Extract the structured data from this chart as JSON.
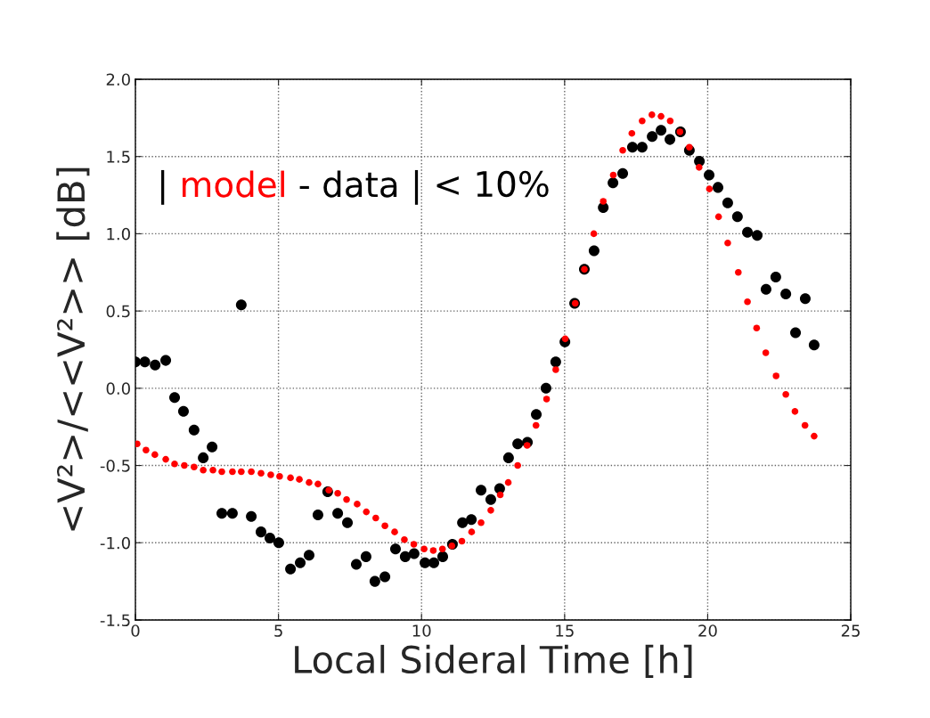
{
  "chart_data": {
    "type": "scatter",
    "xlabel": "Local Sideral Time [h]",
    "ylabel": "<V²>/<<V²>> [dB]",
    "annotations": [
      "| ",
      " - ",
      " | < 10%"
    ],
    "xlim": [
      0,
      25
    ],
    "xticks": [
      0,
      5,
      10,
      15,
      20,
      25
    ],
    "ylim": [
      -1.5,
      2.0
    ],
    "yticks": [
      -1.5,
      {
        "value": -1.0,
        "label": "-1.0"
      },
      -0.5,
      {
        "value": 0.0,
        "label": "0.0"
      },
      0.5,
      {
        "value": 1.0,
        "label": "1.0"
      },
      1.5,
      {
        "value": 2.0,
        "label": "2.0"
      }
    ],
    "grid": true,
    "marker": "circle",
    "series": [
      {
        "name": "model",
        "color": "#ff0000",
        "x": [
          0.06,
          0.37,
          0.68,
          1.06,
          1.37,
          1.71,
          2.05,
          2.37,
          2.71,
          3.02,
          3.39,
          3.7,
          4.05,
          4.39,
          4.73,
          5.04,
          5.42,
          5.73,
          6.07,
          6.38,
          6.76,
          7.07,
          7.38,
          7.75,
          8.07,
          8.4,
          8.72,
          9.06,
          9.4,
          9.73,
          10.09,
          10.41,
          10.73,
          11.06,
          11.41,
          11.75,
          12.08,
          12.42,
          12.75,
          13.03,
          13.36,
          13.69,
          14.0,
          14.37,
          14.69,
          15.02,
          15.37,
          15.69,
          16.02,
          16.35,
          16.7,
          17.03,
          17.35,
          17.71,
          18.05,
          18.37,
          18.69,
          19.03,
          19.36,
          19.7,
          20.06,
          20.38,
          20.7,
          21.07,
          21.39,
          21.71,
          22.03,
          22.39,
          22.73,
          23.05,
          23.4,
          23.72
        ],
        "values": [
          -0.36,
          -0.4,
          -0.43,
          -0.46,
          -0.49,
          -0.5,
          -0.51,
          -0.53,
          -0.53,
          -0.54,
          -0.54,
          -0.54,
          -0.54,
          -0.55,
          -0.56,
          -0.57,
          -0.58,
          -0.59,
          -0.61,
          -0.62,
          -0.66,
          -0.68,
          -0.72,
          -0.75,
          -0.8,
          -0.84,
          -0.89,
          -0.93,
          -0.98,
          -1.01,
          -1.04,
          -1.05,
          -1.04,
          -1.02,
          -0.99,
          -0.93,
          -0.87,
          -0.79,
          -0.69,
          -0.61,
          -0.5,
          -0.37,
          -0.24,
          -0.07,
          0.12,
          0.32,
          0.55,
          0.77,
          1.0,
          1.21,
          1.38,
          1.54,
          1.65,
          1.73,
          1.77,
          1.76,
          1.73,
          1.66,
          1.56,
          1.43,
          1.29,
          1.11,
          0.94,
          0.75,
          0.56,
          0.39,
          0.23,
          0.08,
          -0.04,
          -0.15,
          -0.24,
          -0.31
        ]
      },
      {
        "name": "data",
        "color": "#000000",
        "x": [
          0.0,
          0.33,
          0.69,
          1.06,
          1.37,
          1.68,
          2.05,
          2.37,
          2.68,
          3.02,
          3.39,
          3.7,
          4.05,
          4.39,
          4.7,
          5.01,
          5.42,
          5.76,
          6.07,
          6.38,
          6.72,
          7.07,
          7.41,
          7.72,
          8.06,
          8.37,
          8.72,
          9.09,
          9.43,
          9.74,
          10.12,
          10.43,
          10.74,
          11.08,
          11.43,
          11.74,
          12.08,
          12.42,
          12.73,
          13.04,
          13.36,
          13.7,
          14.01,
          14.35,
          14.69,
          15.01,
          15.35,
          15.69,
          16.03,
          16.35,
          16.69,
          17.03,
          17.37,
          17.71,
          18.06,
          18.37,
          18.68,
          19.05,
          19.36,
          19.71,
          20.05,
          20.36,
          20.7,
          21.04,
          21.39,
          21.73,
          22.04,
          22.38,
          22.73,
          23.07,
          23.41,
          23.72
        ],
        "values": [
          0.17,
          0.17,
          0.15,
          0.18,
          -0.06,
          -0.15,
          -0.27,
          -0.45,
          -0.38,
          -0.81,
          -0.81,
          0.54,
          -0.83,
          -0.93,
          -0.97,
          -1.0,
          -1.17,
          -1.13,
          -1.08,
          -0.82,
          -0.67,
          -0.81,
          -0.87,
          -1.14,
          -1.09,
          -1.25,
          -1.22,
          -1.04,
          -1.09,
          -1.07,
          -1.13,
          -1.13,
          -1.09,
          -1.01,
          -0.87,
          -0.85,
          -0.66,
          -0.72,
          -0.65,
          -0.45,
          -0.36,
          -0.35,
          -0.17,
          0.0,
          0.17,
          0.3,
          0.55,
          0.77,
          0.89,
          1.17,
          1.33,
          1.39,
          1.56,
          1.56,
          1.63,
          1.67,
          1.61,
          1.66,
          1.54,
          1.47,
          1.38,
          1.3,
          1.2,
          1.11,
          1.01,
          0.99,
          0.64,
          0.72,
          0.61,
          0.36,
          0.58,
          0.28
        ]
      }
    ]
  }
}
